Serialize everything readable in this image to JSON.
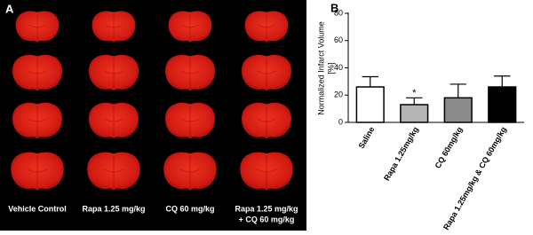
{
  "panel_labels": [
    "A",
    "B"
  ],
  "photo_labels": [
    "Vehicle Control",
    "Rapa 1.25 mg/kg",
    "CQ 60 mg/kg",
    [
      "Rapa 1.25 mg/kg",
      "+ CQ 60 mg/kg"
    ]
  ],
  "chart_data": {
    "type": "bar",
    "ylabel": [
      "Normalized Infarct Volume",
      "[%]"
    ],
    "categories": [
      "Saline",
      "Rapa 1.25mg/kg",
      "CQ 60mg/kg",
      "Rapa 1.25mg/kg & CQ 60mg/kg"
    ],
    "values": [
      26,
      13,
      18,
      26
    ],
    "errors": [
      7.5,
      5,
      10,
      8
    ],
    "colors": [
      "#ffffff",
      "#b4b4b4",
      "#8c8c8c",
      "#000000"
    ],
    "annotation": "*",
    "ylim": [
      0,
      80
    ],
    "yticks": [
      0,
      20,
      40,
      60,
      80
    ]
  }
}
